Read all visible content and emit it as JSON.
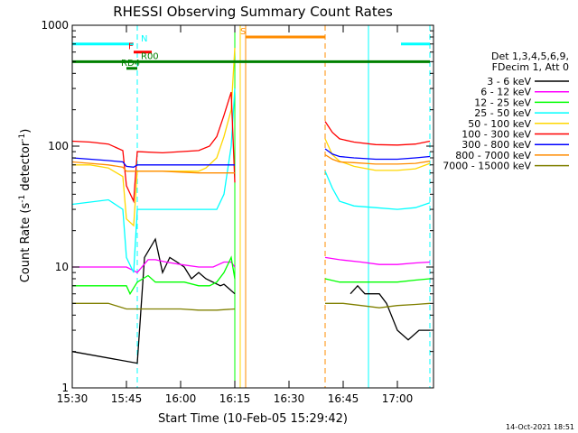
{
  "chart_data": {
    "type": "line",
    "title": "RHESSI Observing Summary Count Rates",
    "xlabel": "Start Time (10-Feb-05 15:29:42)",
    "ylabel_main": "Count Rate (s",
    "ylabel_sup1": "-1",
    "ylabel_mid": " detector",
    "ylabel_sup2": "-1",
    "ylabel_end": ")",
    "yscale": "log",
    "ylim": [
      1,
      1000
    ],
    "xlim_minutes": [
      0,
      100
    ],
    "x_ticks": [
      {
        "min": 0,
        "label": "15:30"
      },
      {
        "min": 15,
        "label": "15:45"
      },
      {
        "min": 30,
        "label": "16:00"
      },
      {
        "min": 45,
        "label": "16:15"
      },
      {
        "min": 60,
        "label": "16:30"
      },
      {
        "min": 75,
        "label": "16:45"
      },
      {
        "min": 90,
        "label": "17:00"
      }
    ],
    "y_ticks": [
      {
        "value": 1,
        "label": "1"
      },
      {
        "value": 10,
        "label": "10"
      },
      {
        "value": 100,
        "label": "100"
      },
      {
        "value": 1000,
        "label": "1000"
      }
    ],
    "legend_header": [
      "Det 1,3,4,5,6,9,",
      "FDecim 1, Att 0"
    ],
    "legend_position": "right",
    "date_stamp": "14-Oct-2021 18:51",
    "series": [
      {
        "name": "3 - 6 keV",
        "color": "#000000",
        "points": [
          [
            0,
            2.0
          ],
          [
            18,
            1.6
          ],
          [
            20,
            12
          ],
          [
            23,
            17
          ],
          [
            25,
            9
          ],
          [
            27,
            12
          ],
          [
            29,
            11
          ],
          [
            31,
            10
          ],
          [
            33,
            8
          ],
          [
            35,
            9
          ],
          [
            37,
            8
          ],
          [
            41,
            7
          ],
          [
            42,
            7.2
          ],
          [
            45,
            6
          ]
        ],
        "points2": [
          [
            77,
            6
          ],
          [
            79,
            7
          ],
          [
            81,
            6
          ],
          [
            83,
            6
          ],
          [
            85,
            6
          ],
          [
            87,
            5
          ],
          [
            90,
            3
          ],
          [
            93,
            2.5
          ],
          [
            96,
            3
          ],
          [
            99,
            3
          ]
        ]
      },
      {
        "name": "6 - 12 keV",
        "color": "#ff00ff",
        "points": [
          [
            0,
            10
          ],
          [
            12,
            10
          ],
          [
            15,
            10
          ],
          [
            18,
            9
          ],
          [
            21,
            11.5
          ],
          [
            23,
            11.5
          ],
          [
            26,
            11
          ],
          [
            30,
            10.5
          ],
          [
            35,
            10
          ],
          [
            39,
            10
          ],
          [
            42,
            11
          ],
          [
            44,
            11
          ],
          [
            45,
            10
          ]
        ],
        "points2": [
          [
            70,
            12
          ],
          [
            74,
            11.5
          ],
          [
            80,
            11
          ],
          [
            85,
            10.5
          ],
          [
            90,
            10.5
          ],
          [
            95,
            10.8
          ],
          [
            99,
            11
          ]
        ]
      },
      {
        "name": "12 - 25 keV",
        "color": "#00ff00",
        "points": [
          [
            0,
            7
          ],
          [
            14,
            7
          ],
          [
            15,
            7
          ],
          [
            16,
            6
          ],
          [
            18,
            7.5
          ],
          [
            21,
            8.5
          ],
          [
            23,
            7.5
          ],
          [
            27,
            7.5
          ],
          [
            31,
            7.5
          ],
          [
            35,
            7
          ],
          [
            38,
            7
          ],
          [
            40,
            7.5
          ],
          [
            42,
            9
          ],
          [
            44,
            12
          ],
          [
            45,
            8
          ]
        ],
        "points2": [
          [
            70,
            8
          ],
          [
            74,
            7.5
          ],
          [
            80,
            7.5
          ],
          [
            85,
            7.5
          ],
          [
            90,
            7.5
          ],
          [
            95,
            7.8
          ],
          [
            99,
            8
          ]
        ]
      },
      {
        "name": "25 - 50 keV",
        "color": "#00ffff",
        "points": [
          [
            0,
            33
          ],
          [
            10,
            36
          ],
          [
            14,
            30
          ],
          [
            15,
            12
          ],
          [
            17,
            9
          ],
          [
            18,
            30
          ],
          [
            23,
            30
          ],
          [
            30,
            30
          ],
          [
            36,
            30
          ],
          [
            40,
            30
          ],
          [
            42,
            40
          ],
          [
            44,
            100
          ],
          [
            45,
            300
          ]
        ],
        "points2": [
          [
            70,
            62
          ],
          [
            72,
            45
          ],
          [
            74,
            35
          ],
          [
            78,
            32
          ],
          [
            84,
            31
          ],
          [
            90,
            30
          ],
          [
            95,
            31
          ],
          [
            99,
            34
          ]
        ]
      },
      {
        "name": "50 - 100 keV",
        "color": "#ffd700",
        "points": [
          [
            0,
            70
          ],
          [
            5,
            70
          ],
          [
            10,
            66
          ],
          [
            14,
            56
          ],
          [
            15,
            25
          ],
          [
            17,
            22
          ],
          [
            18,
            62
          ],
          [
            25,
            62
          ],
          [
            30,
            62
          ],
          [
            35,
            62
          ],
          [
            37,
            66
          ],
          [
            40,
            80
          ],
          [
            42,
            120
          ],
          [
            44,
            200
          ],
          [
            45,
            650
          ]
        ],
        "points2": [
          [
            70,
            115
          ],
          [
            72,
            85
          ],
          [
            74,
            75
          ],
          [
            78,
            68
          ],
          [
            84,
            63
          ],
          [
            90,
            63
          ],
          [
            95,
            65
          ],
          [
            99,
            72
          ]
        ]
      },
      {
        "name": "100 - 300 keV",
        "color": "#ff0000",
        "points": [
          [
            0,
            110
          ],
          [
            5,
            108
          ],
          [
            10,
            104
          ],
          [
            14,
            92
          ],
          [
            15,
            47
          ],
          [
            17,
            35
          ],
          [
            18,
            90
          ],
          [
            25,
            88
          ],
          [
            30,
            90
          ],
          [
            35,
            92
          ],
          [
            38,
            100
          ],
          [
            40,
            120
          ],
          [
            42,
            180
          ],
          [
            44,
            280
          ],
          [
            45,
            50
          ]
        ],
        "points2": [
          [
            70,
            160
          ],
          [
            72,
            130
          ],
          [
            74,
            115
          ],
          [
            78,
            108
          ],
          [
            84,
            103
          ],
          [
            90,
            102
          ],
          [
            95,
            104
          ],
          [
            99,
            110
          ]
        ]
      },
      {
        "name": "300 - 800 keV",
        "color": "#0000ff",
        "points": [
          [
            0,
            80
          ],
          [
            5,
            78
          ],
          [
            10,
            76
          ],
          [
            14,
            74
          ],
          [
            15,
            68
          ],
          [
            17,
            67
          ],
          [
            18,
            70
          ],
          [
            25,
            70
          ],
          [
            30,
            70
          ],
          [
            35,
            70
          ],
          [
            40,
            70
          ],
          [
            45,
            70
          ]
        ],
        "points2": [
          [
            70,
            95
          ],
          [
            72,
            86
          ],
          [
            74,
            82
          ],
          [
            78,
            80
          ],
          [
            84,
            78
          ],
          [
            90,
            78
          ],
          [
            95,
            80
          ],
          [
            99,
            82
          ]
        ]
      },
      {
        "name": "800 - 7000 keV",
        "color": "#ff8c00",
        "points": [
          [
            0,
            74
          ],
          [
            5,
            72
          ],
          [
            10,
            70
          ],
          [
            14,
            67
          ],
          [
            15,
            62
          ],
          [
            18,
            62
          ],
          [
            25,
            62
          ],
          [
            30,
            61
          ],
          [
            35,
            60
          ],
          [
            40,
            60
          ],
          [
            45,
            60
          ]
        ],
        "points2": [
          [
            70,
            85
          ],
          [
            72,
            78
          ],
          [
            74,
            74
          ],
          [
            78,
            73
          ],
          [
            84,
            71
          ],
          [
            90,
            71
          ],
          [
            95,
            72
          ],
          [
            99,
            75
          ]
        ]
      },
      {
        "name": "7000 - 15000 keV",
        "color": "#808000",
        "points": [
          [
            0,
            5
          ],
          [
            10,
            5
          ],
          [
            15,
            4.5
          ],
          [
            18,
            4.5
          ],
          [
            25,
            4.5
          ],
          [
            30,
            4.5
          ],
          [
            35,
            4.4
          ],
          [
            40,
            4.4
          ],
          [
            45,
            4.5
          ]
        ],
        "points2": [
          [
            70,
            5
          ],
          [
            75,
            5
          ],
          [
            80,
            4.8
          ],
          [
            85,
            4.6
          ],
          [
            90,
            4.8
          ],
          [
            95,
            4.9
          ],
          [
            99,
            5
          ]
        ]
      }
    ],
    "markers": [
      {
        "label": "N",
        "color": "#00ffff",
        "segments": [
          [
            0,
            17
          ],
          [
            91,
            99
          ]
        ],
        "level": 700
      },
      {
        "label": "F",
        "color": "#ff0000",
        "segments": [
          [
            17,
            22
          ]
        ],
        "level": 600
      },
      {
        "label": "R00",
        "color": "#008000",
        "segments": [
          [
            0,
            99
          ]
        ],
        "level": 500
      },
      {
        "label": "RD4",
        "color": "#008000",
        "segments": [
          [
            15,
            18
          ]
        ],
        "level": 440
      },
      {
        "label": "S",
        "color": "#ff8c00",
        "segments": [
          [
            48,
            70
          ]
        ],
        "level": 800
      }
    ],
    "vlines": [
      {
        "min": 0,
        "color": "#00ffff",
        "style": "solid"
      },
      {
        "min": 18,
        "color": "#00ffff",
        "style": "dashed"
      },
      {
        "min": 45,
        "color": "#00ff00",
        "style": "solid"
      },
      {
        "min": 46.5,
        "color": "#ffd700",
        "style": "solid"
      },
      {
        "min": 48,
        "color": "#ff8c00",
        "style": "solid"
      },
      {
        "min": 70,
        "color": "#ff8c00",
        "style": "dashed"
      },
      {
        "min": 82,
        "color": "#00ffff",
        "style": "solid"
      },
      {
        "min": 99,
        "color": "#00ffff",
        "style": "dashed"
      }
    ]
  }
}
